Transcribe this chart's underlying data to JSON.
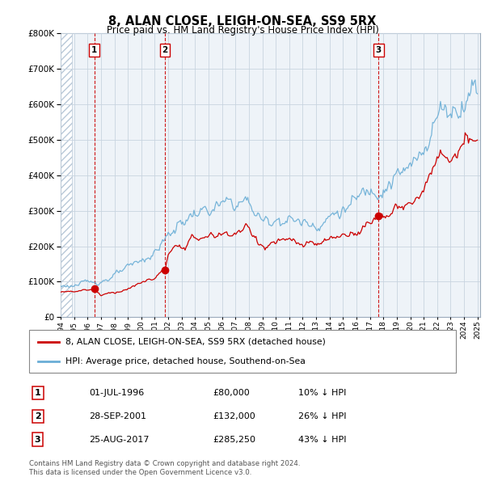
{
  "title": "8, ALAN CLOSE, LEIGH-ON-SEA, SS9 5RX",
  "subtitle": "Price paid vs. HM Land Registry's House Price Index (HPI)",
  "legend_line1": "8, ALAN CLOSE, LEIGH-ON-SEA, SS9 5RX (detached house)",
  "legend_line2": "HPI: Average price, detached house, Southend-on-Sea",
  "sales": [
    {
      "label": "1",
      "date_str": "01-JUL-1996",
      "year": 1996.5,
      "price": 80000
    },
    {
      "label": "2",
      "date_str": "28-SEP-2001",
      "year": 2001.75,
      "price": 132000
    },
    {
      "label": "3",
      "date_str": "25-AUG-2017",
      "year": 2017.65,
      "price": 285250
    }
  ],
  "table_rows": [
    {
      "num": "1",
      "date": "01-JUL-1996",
      "price": "£80,000",
      "hpi": "10% ↓ HPI"
    },
    {
      "num": "2",
      "date": "28-SEP-2001",
      "price": "£132,000",
      "hpi": "26% ↓ HPI"
    },
    {
      "num": "3",
      "date": "25-AUG-2017",
      "price": "£285,250",
      "hpi": "43% ↓ HPI"
    }
  ],
  "footer": "Contains HM Land Registry data © Crown copyright and database right 2024.\nThis data is licensed under the Open Government Licence v3.0.",
  "xmin": 1994.0,
  "xmax": 2025.2,
  "ymin": 0,
  "ymax": 800000,
  "red_color": "#cc0000",
  "blue_color": "#6aaed6",
  "hatch_color": "#dce6f1",
  "grid_color": "#c8d4e0",
  "bg_color": "#eef3f8"
}
